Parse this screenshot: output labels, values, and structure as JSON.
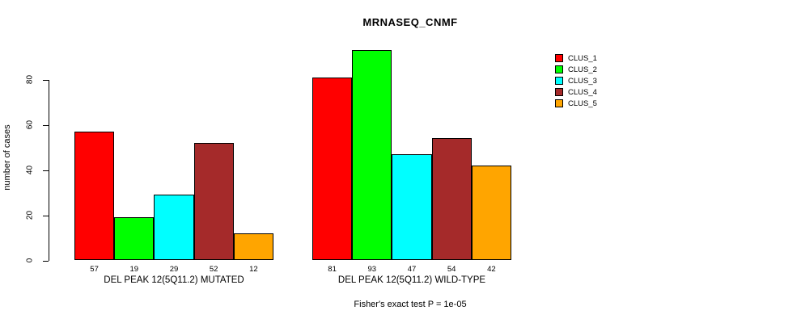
{
  "chart_data": {
    "type": "bar",
    "title": "MRNASEQ_CNMF",
    "ylabel": "number of cases",
    "xlabel": "",
    "yticks": [
      0,
      20,
      40,
      60,
      80
    ],
    "ylim": [
      0,
      93
    ],
    "grid": false,
    "legend_position": "top-right",
    "series_colors": [
      "#FF0000",
      "#00FF00",
      "#00FFFF",
      "#A52A2A",
      "#FFA500"
    ],
    "legend_labels": [
      "CLUS_1",
      "CLUS_2",
      "CLUS_3",
      "CLUS_4",
      "CLUS_5"
    ],
    "groups": [
      {
        "label": "DEL PEAK 12(5Q11.2) MUTATED",
        "values": [
          57,
          19,
          29,
          52,
          12
        ]
      },
      {
        "label": "DEL PEAK 12(5Q11.2) WILD-TYPE",
        "values": [
          81,
          93,
          47,
          54,
          42
        ]
      }
    ],
    "annotation": "Fisher's exact test P = 1e-05"
  }
}
